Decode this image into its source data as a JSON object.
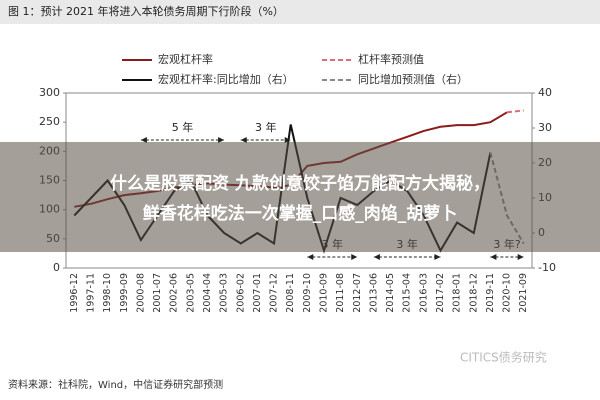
{
  "chart_data": {
    "type": "line",
    "title": "图 1：预计 2021 年将进入本轮债务周期下行阶段（%）",
    "categories": [
      "1996-12",
      "1997-11",
      "1998-10",
      "1999-09",
      "2000-08",
      "2001-07",
      "2002-06",
      "2003-05",
      "2004-04",
      "2005-03",
      "2006-02",
      "2007-01",
      "2007-12",
      "2008-11",
      "2009-10",
      "2010-09",
      "2011-08",
      "2012-07",
      "2013-06",
      "2014-05",
      "2015-04",
      "2016-03",
      "2017-02",
      "2018-01",
      "2018-12",
      "2019-11",
      "2020-10",
      "2021-09"
    ],
    "series": [
      {
        "name": "宏观杠杆率",
        "color": "#8b1c1c",
        "dash": false,
        "axis": "y",
        "values": [
          105,
          110,
          118,
          125,
          128,
          132,
          138,
          142,
          145,
          143,
          142,
          140,
          138,
          142,
          175,
          180,
          182,
          195,
          205,
          215,
          225,
          235,
          242,
          245,
          245,
          250,
          267,
          null
        ]
      },
      {
        "name": "杠杆率预测值",
        "color": "#e06a78",
        "dash": true,
        "axis": "y",
        "values": [
          null,
          null,
          null,
          null,
          null,
          null,
          null,
          null,
          null,
          null,
          null,
          null,
          null,
          null,
          null,
          null,
          null,
          null,
          null,
          null,
          null,
          null,
          null,
          null,
          null,
          null,
          267,
          270
        ]
      },
      {
        "name": "宏观杠杆率:同比增加（右）",
        "color": "#111111",
        "dash": false,
        "axis": "y2",
        "values": [
          5,
          10,
          15,
          8,
          -2,
          5,
          12,
          15,
          5,
          0,
          -3,
          0,
          -3,
          31,
          10,
          -5,
          10,
          8,
          12,
          15,
          12,
          5,
          -5,
          3,
          0,
          23,
          null,
          null
        ]
      },
      {
        "name": "同比增加预测值（右）",
        "color": "#888888",
        "dash": true,
        "axis": "y2",
        "values": [
          null,
          null,
          null,
          null,
          null,
          null,
          null,
          null,
          null,
          null,
          null,
          null,
          null,
          null,
          null,
          null,
          null,
          null,
          null,
          null,
          null,
          null,
          null,
          null,
          null,
          23,
          5,
          -3
        ]
      }
    ],
    "ylim": [
      0,
      300
    ],
    "yticks": [
      0,
      50,
      100,
      150,
      200,
      250,
      300
    ],
    "y2lim": [
      -10,
      40
    ],
    "y2ticks": [
      -10,
      0,
      10,
      20,
      30,
      40
    ],
    "grid": false,
    "annotations": [
      "5 年",
      "3 年",
      "3 年",
      "3 年",
      "3 年?"
    ]
  },
  "overlay": {
    "lines": [
      "什么是股票配资 九款创意饺子馅万能配方大揭秘，",
      "鲜香花样吃法一次掌握_口感_肉馅_胡萝卜"
    ]
  },
  "source": "资料来源：社科院，Wind，中信证券研究部预测",
  "watermark": "CITICS债务研究"
}
